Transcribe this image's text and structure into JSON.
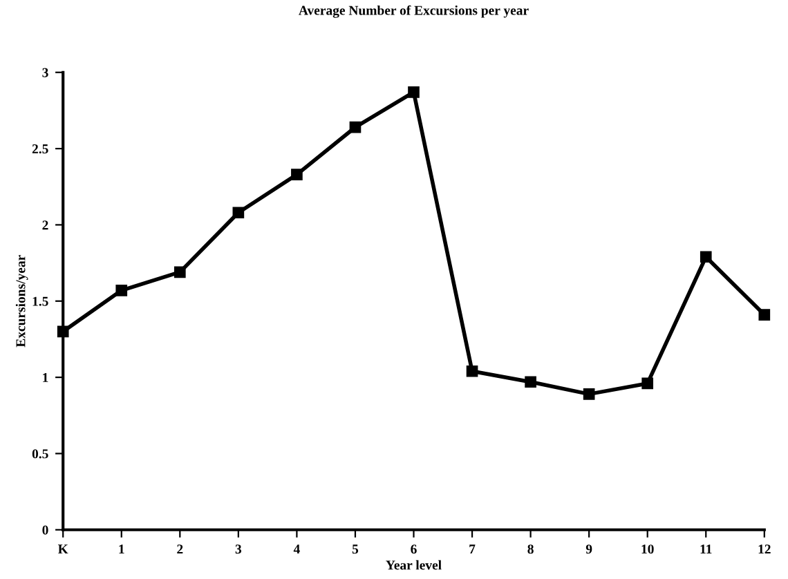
{
  "chart_data": {
    "type": "line",
    "title": "Average Number of Excursions per year",
    "xlabel": "Year level",
    "ylabel": "Excursions/year",
    "x": [
      0,
      1,
      2,
      3,
      4,
      5,
      6,
      7,
      8,
      9,
      10,
      11,
      12
    ],
    "series": [
      {
        "color": "#000000",
        "values": [
          1.3,
          1.57,
          1.69,
          2.08,
          2.33,
          2.64,
          2.87,
          1.04,
          0.97,
          0.89,
          0.96,
          1.79,
          1.41
        ]
      }
    ],
    "xlim": [
      0,
      12
    ],
    "xticks": [
      {
        "value": 0,
        "label": "K"
      },
      1,
      2,
      3,
      4,
      5,
      6,
      7,
      8,
      9,
      10,
      11,
      12
    ],
    "ylim": [
      0,
      3
    ],
    "yticks": [
      0,
      0.5,
      1,
      1.5,
      2,
      2.5,
      3
    ],
    "grid": false,
    "legend": false,
    "marker": "square",
    "line_style": "solid"
  }
}
